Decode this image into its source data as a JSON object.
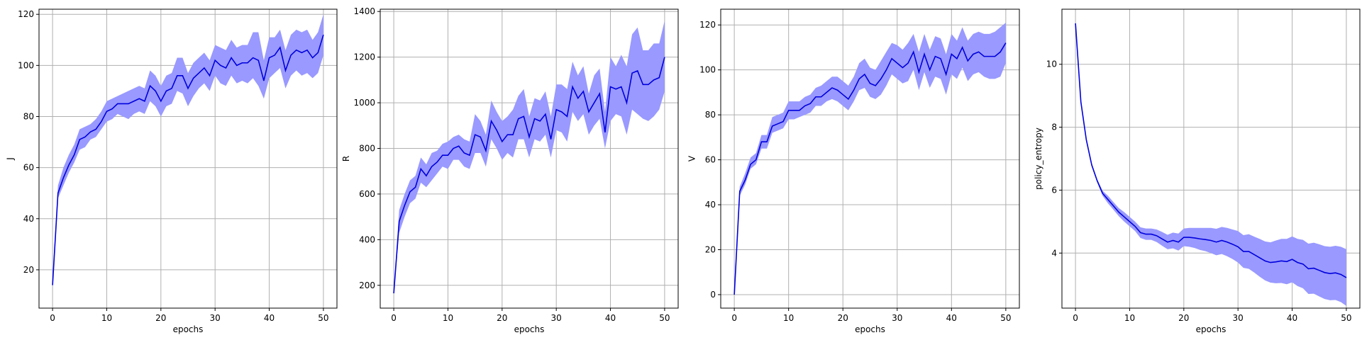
{
  "chart_data": [
    {
      "type": "line",
      "xlabel": "epochs",
      "ylabel": "J",
      "xlim": [
        -2.5,
        52.5
      ],
      "ylim": [
        5,
        122
      ],
      "xticks": [
        0,
        10,
        20,
        30,
        40,
        50
      ],
      "yticks": [
        20,
        40,
        60,
        80,
        100,
        120
      ],
      "grid": true,
      "line_color": "#0000dd",
      "band_color": "#9999ff",
      "series": [
        {
          "x": [
            0,
            1,
            2,
            3,
            4,
            5,
            6,
            7,
            8,
            9,
            10,
            11,
            12,
            13,
            14,
            15,
            16,
            17,
            18,
            19,
            20,
            21,
            22,
            23,
            24,
            25,
            26,
            27,
            28,
            29,
            30,
            31,
            32,
            33,
            34,
            35,
            36,
            37,
            38,
            39,
            40,
            41,
            42,
            43,
            44,
            45,
            46,
            47,
            48,
            49,
            50
          ],
          "mean": [
            14,
            50,
            56,
            61,
            65,
            71,
            72,
            74,
            75,
            78,
            82,
            83,
            85,
            85,
            85,
            86,
            87,
            86,
            92,
            90,
            86,
            90,
            91,
            96,
            96,
            91,
            95,
            97,
            99,
            96,
            102,
            100,
            99,
            103,
            100,
            101,
            101,
            103,
            102,
            94,
            103,
            104,
            107,
            98,
            104,
            106,
            105,
            106,
            103,
            105,
            112
          ],
          "upper": [
            17,
            53,
            60,
            65,
            69,
            75,
            76,
            77,
            79,
            82,
            86,
            87,
            88,
            89,
            90,
            91,
            92,
            91,
            98,
            96,
            92,
            96,
            97,
            103,
            103,
            97,
            101,
            103,
            105,
            102,
            108,
            107,
            106,
            110,
            107,
            108,
            108,
            113,
            113,
            102,
            111,
            111,
            114,
            106,
            112,
            114,
            113,
            114,
            110,
            113,
            120
          ],
          "lower": [
            12,
            48,
            53,
            58,
            62,
            67,
            68,
            71,
            72,
            75,
            78,
            79,
            81,
            80,
            79,
            81,
            82,
            81,
            86,
            84,
            80,
            84,
            85,
            90,
            89,
            84,
            88,
            91,
            93,
            90,
            96,
            93,
            92,
            96,
            93,
            94,
            93,
            95,
            92,
            87,
            95,
            97,
            99,
            91,
            96,
            98,
            96,
            97,
            95,
            97,
            104
          ]
        }
      ]
    },
    {
      "type": "line",
      "xlabel": "epochs",
      "ylabel": "R",
      "xlim": [
        -2.5,
        52.5
      ],
      "ylim": [
        100,
        1410
      ],
      "xticks": [
        0,
        10,
        20,
        30,
        40,
        50
      ],
      "yticks": [
        200,
        400,
        600,
        800,
        1000,
        1200,
        1400
      ],
      "grid": true,
      "line_color": "#0000dd",
      "band_color": "#9999ff",
      "series": [
        {
          "x": [
            0,
            1,
            2,
            3,
            4,
            5,
            6,
            7,
            8,
            9,
            10,
            11,
            12,
            13,
            14,
            15,
            16,
            17,
            18,
            19,
            20,
            21,
            22,
            23,
            24,
            25,
            26,
            27,
            28,
            29,
            30,
            31,
            32,
            33,
            34,
            35,
            36,
            37,
            38,
            39,
            40,
            41,
            42,
            43,
            44,
            45,
            46,
            47,
            48,
            49,
            50
          ],
          "mean": [
            165,
            480,
            550,
            610,
            630,
            710,
            680,
            720,
            740,
            770,
            770,
            800,
            810,
            780,
            770,
            860,
            850,
            790,
            920,
            880,
            830,
            860,
            860,
            930,
            940,
            850,
            930,
            920,
            950,
            840,
            970,
            960,
            940,
            1070,
            1020,
            1050,
            960,
            1000,
            1040,
            870,
            1070,
            1060,
            1070,
            1000,
            1130,
            1140,
            1080,
            1080,
            1100,
            1110,
            1200
          ],
          "upper": [
            175,
            530,
            600,
            660,
            680,
            760,
            730,
            780,
            790,
            820,
            830,
            850,
            860,
            840,
            830,
            950,
            920,
            860,
            1010,
            960,
            920,
            940,
            970,
            1030,
            1060,
            940,
            1020,
            1010,
            1050,
            940,
            1080,
            1080,
            1060,
            1180,
            1120,
            1160,
            1040,
            1120,
            1150,
            960,
            1200,
            1160,
            1210,
            1160,
            1300,
            1330,
            1230,
            1230,
            1260,
            1260,
            1360
          ],
          "lower": [
            160,
            430,
            500,
            560,
            580,
            650,
            630,
            660,
            690,
            720,
            710,
            750,
            750,
            720,
            710,
            780,
            780,
            720,
            840,
            800,
            750,
            780,
            760,
            840,
            840,
            760,
            840,
            830,
            860,
            760,
            880,
            870,
            830,
            960,
            920,
            950,
            860,
            900,
            930,
            800,
            920,
            950,
            940,
            860,
            970,
            950,
            930,
            920,
            940,
            970,
            1050
          ]
        }
      ]
    },
    {
      "type": "line",
      "xlabel": "epochs",
      "ylabel": "V",
      "xlim": [
        -2.5,
        52.5
      ],
      "ylim": [
        -6,
        127
      ],
      "xticks": [
        0,
        10,
        20,
        30,
        40,
        50
      ],
      "yticks": [
        0,
        20,
        40,
        60,
        80,
        100,
        120
      ],
      "grid": true,
      "line_color": "#0000dd",
      "band_color": "#9999ff",
      "series": [
        {
          "x": [
            0,
            1,
            2,
            3,
            4,
            5,
            6,
            7,
            8,
            9,
            10,
            11,
            12,
            13,
            14,
            15,
            16,
            17,
            18,
            19,
            20,
            21,
            22,
            23,
            24,
            25,
            26,
            27,
            28,
            29,
            30,
            31,
            32,
            33,
            34,
            35,
            36,
            37,
            38,
            39,
            40,
            41,
            42,
            43,
            44,
            45,
            46,
            47,
            48,
            49,
            50
          ],
          "mean": [
            0,
            46,
            51,
            58,
            60,
            68,
            68,
            75,
            76,
            77,
            82,
            82,
            82,
            84,
            85,
            88,
            88,
            90,
            92,
            91,
            89,
            87,
            91,
            96,
            98,
            94,
            93,
            96,
            100,
            105,
            103,
            101,
            103,
            108,
            99,
            107,
            100,
            106,
            105,
            98,
            107,
            105,
            110,
            104,
            107,
            108,
            106,
            106,
            106,
            108,
            112
          ],
          "upper": [
            1,
            48,
            54,
            61,
            63,
            71,
            71,
            79,
            80,
            81,
            86,
            86,
            86,
            88,
            89,
            92,
            93,
            95,
            97,
            97,
            95,
            93,
            97,
            103,
            105,
            101,
            100,
            104,
            108,
            112,
            111,
            109,
            112,
            116,
            108,
            116,
            109,
            115,
            114,
            107,
            116,
            113,
            119,
            113,
            116,
            117,
            116,
            116,
            117,
            119,
            121
          ],
          "lower": [
            0,
            44,
            49,
            56,
            58,
            65,
            65,
            72,
            73,
            74,
            78,
            78,
            79,
            80,
            81,
            84,
            84,
            86,
            87,
            86,
            84,
            82,
            86,
            91,
            92,
            88,
            87,
            89,
            93,
            98,
            96,
            94,
            95,
            100,
            91,
            99,
            92,
            97,
            96,
            89,
            98,
            96,
            101,
            95,
            98,
            99,
            97,
            96,
            96,
            97,
            103
          ]
        }
      ]
    },
    {
      "type": "line",
      "xlabel": "epochs",
      "ylabel": "policy_entropy",
      "xlim": [
        -2.5,
        52.5
      ],
      "ylim": [
        2.25,
        11.75
      ],
      "xticks": [
        0,
        10,
        20,
        30,
        40,
        50
      ],
      "yticks": [
        4,
        6,
        8,
        10
      ],
      "grid": true,
      "line_color": "#0000dd",
      "band_color": "#9999ff",
      "series": [
        {
          "x": [
            0,
            1,
            2,
            3,
            4,
            5,
            6,
            7,
            8,
            9,
            10,
            11,
            12,
            13,
            14,
            15,
            16,
            17,
            18,
            19,
            20,
            21,
            22,
            23,
            24,
            25,
            26,
            27,
            28,
            29,
            30,
            31,
            32,
            33,
            34,
            35,
            36,
            37,
            38,
            39,
            40,
            41,
            42,
            43,
            44,
            45,
            46,
            47,
            48,
            49,
            50
          ],
          "mean": [
            11.3,
            8.8,
            7.6,
            6.8,
            6.3,
            5.9,
            5.7,
            5.5,
            5.3,
            5.15,
            5.0,
            4.85,
            4.65,
            4.6,
            4.6,
            4.55,
            4.45,
            4.35,
            4.4,
            4.35,
            4.5,
            4.5,
            4.48,
            4.45,
            4.43,
            4.4,
            4.35,
            4.4,
            4.35,
            4.28,
            4.2,
            4.05,
            4.05,
            3.95,
            3.85,
            3.75,
            3.7,
            3.72,
            3.75,
            3.73,
            3.8,
            3.7,
            3.65,
            3.5,
            3.52,
            3.45,
            3.38,
            3.35,
            3.37,
            3.32,
            3.22
          ],
          "upper": [
            11.35,
            8.85,
            7.65,
            6.85,
            6.35,
            5.98,
            5.82,
            5.62,
            5.43,
            5.3,
            5.15,
            5.0,
            4.82,
            4.78,
            4.78,
            4.75,
            4.67,
            4.58,
            4.65,
            4.62,
            4.78,
            4.8,
            4.8,
            4.8,
            4.8,
            4.8,
            4.77,
            4.83,
            4.8,
            4.75,
            4.7,
            4.57,
            4.6,
            4.52,
            4.45,
            4.37,
            4.34,
            4.4,
            4.45,
            4.45,
            4.53,
            4.45,
            4.42,
            4.3,
            4.33,
            4.28,
            4.22,
            4.2,
            4.23,
            4.2,
            4.12
          ],
          "lower": [
            11.25,
            8.75,
            7.55,
            6.75,
            6.25,
            5.82,
            5.58,
            5.38,
            5.17,
            5.0,
            4.85,
            4.7,
            4.48,
            4.42,
            4.42,
            4.35,
            4.23,
            4.12,
            4.15,
            4.08,
            4.22,
            4.2,
            4.16,
            4.1,
            4.06,
            4.0,
            3.93,
            3.97,
            3.9,
            3.81,
            3.7,
            3.53,
            3.5,
            3.38,
            3.25,
            3.13,
            3.06,
            3.04,
            3.05,
            3.01,
            3.07,
            2.95,
            2.88,
            2.7,
            2.71,
            2.62,
            2.54,
            2.5,
            2.51,
            2.44,
            2.32
          ]
        }
      ]
    }
  ]
}
